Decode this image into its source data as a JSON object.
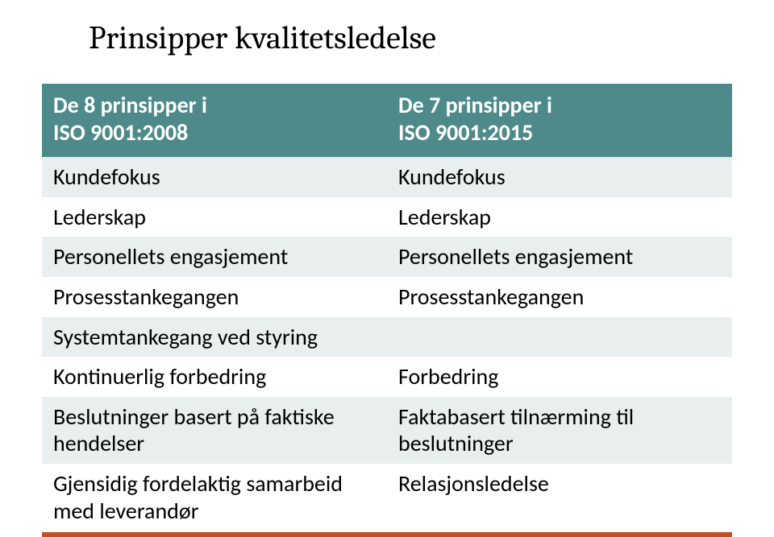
{
  "title": "Prinsipper kvalitetsledelse",
  "colors": {
    "header_bg": "#4f8a8b",
    "row_odd_bg": "#e9eeef",
    "row_even_bg": "#ffffff",
    "rule_color": "#c05028",
    "text_color": "#000000",
    "header_text_color": "#ffffff"
  },
  "table": {
    "header_left_line1": "De  8 prinsipper i",
    "header_left_line2": "ISO 9001:2008",
    "header_right_line1": "De  7 prinsipper i",
    "header_right_line2": "ISO 9001:2015",
    "rows": [
      {
        "left": "Kundefokus",
        "right": "Kundefokus"
      },
      {
        "left": "Lederskap",
        "right": "Lederskap"
      },
      {
        "left": "Personellets engasjement",
        "right": "Personellets engasjement"
      },
      {
        "left": "Prosesstankegangen",
        "right": "Prosesstankegangen"
      },
      {
        "left": "Systemtankegang ved styring",
        "right": ""
      },
      {
        "left": "Kontinuerlig forbedring",
        "right": "Forbedring"
      },
      {
        "left": "Beslutninger basert på faktiske hendelser",
        "right": "Faktabasert tilnærming til beslutninger"
      },
      {
        "left": "Gjensidig fordelaktig samarbeid med leverandør",
        "right": "Relasjonsledelse"
      }
    ]
  }
}
